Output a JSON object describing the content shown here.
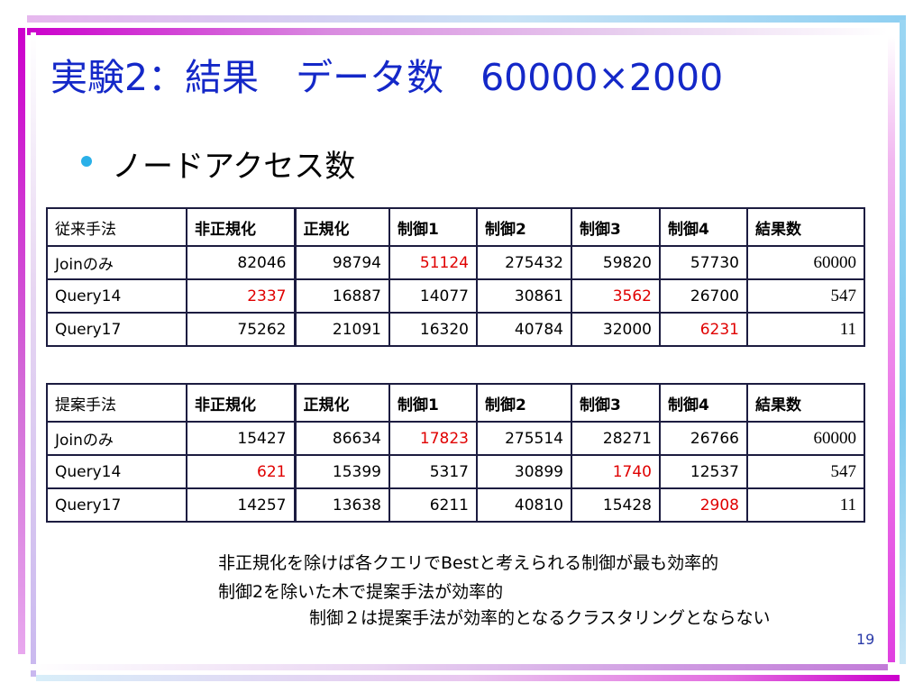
{
  "title": "実験2：結果　データ数　60000×2000",
  "bullet": "ノードアクセス数",
  "colors": {
    "title": "#1428c8",
    "bullet": "#2ab0e8",
    "highlight": "#e00000"
  },
  "table1": {
    "header": [
      "従来手法",
      "非正規化",
      "正規化",
      "制御1",
      "制御2",
      "制御3",
      "制御4",
      "結果数"
    ],
    "rows": [
      [
        "Joinのみ",
        "82046",
        "98794",
        "51124",
        "275432",
        "59820",
        "57730",
        "60000"
      ],
      [
        "Query14",
        "2337",
        "16887",
        "14077",
        "30861",
        "3562",
        "26700",
        "547"
      ],
      [
        "Query17",
        "75262",
        "21091",
        "16320",
        "40784",
        "32000",
        "6231",
        "11"
      ]
    ]
  },
  "table2": {
    "header": [
      "提案手法",
      "非正規化",
      "正規化",
      "制御1",
      "制御2",
      "制御3",
      "制御4",
      "結果数"
    ],
    "rows": [
      [
        "Joinのみ",
        "15427",
        "86634",
        "17823",
        "275514",
        "28271",
        "26766",
        "60000"
      ],
      [
        "Query14",
        "621",
        "15399",
        "5317",
        "30899",
        "1740",
        "12537",
        "547"
      ],
      [
        "Query17",
        "14257",
        "13638",
        "6211",
        "40810",
        "15428",
        "2908",
        "11"
      ]
    ]
  },
  "notes": [
    "非正規化を除けば各クエリでBestと考えられる制御が最も効率的",
    "制御2を除いた木で提案手法が効率的",
    "制御２は提案手法が効率的となるクラスタリングとならない"
  ],
  "page_number": "19"
}
